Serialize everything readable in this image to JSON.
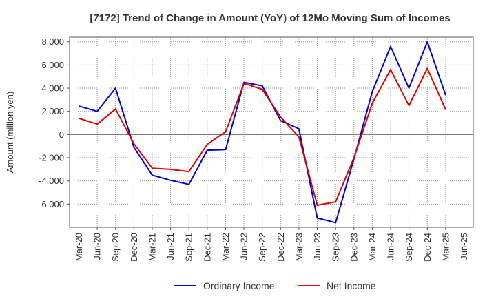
{
  "chart_data": {
    "type": "line",
    "title": "[7172]  Trend of Change in Amount (YoY) of 12Mo Moving Sum of Incomes",
    "ylabel": "Amount (million yen)",
    "xlabel": "",
    "x": [
      "Mar-20",
      "Jun-20",
      "Sep-20",
      "Dec-20",
      "Mar-21",
      "Jun-21",
      "Sep-21",
      "Dec-21",
      "Mar-22",
      "Jun-22",
      "Sep-22",
      "Dec-22",
      "Mar-23",
      "Jun-23",
      "Sep-23",
      "Dec-23",
      "Mar-24",
      "Jun-24",
      "Sep-24",
      "Dec-24",
      "Mar-25",
      "Jun-25"
    ],
    "ylim": [
      -8000,
      8400
    ],
    "yticks": [
      -6000,
      -4000,
      -2000,
      0,
      2000,
      4000,
      6000,
      8000
    ],
    "ytick_labels": [
      "-6,000",
      "-4,000",
      "-2,000",
      "0",
      "2,000",
      "4,000",
      "6,000",
      "8,000"
    ],
    "grid": true,
    "legend_position": "bottom",
    "series": [
      {
        "name": "Ordinary Income",
        "color": "#0000cc",
        "values": [
          2450,
          2000,
          4000,
          -1100,
          -3500,
          -3950,
          -4300,
          -1350,
          -1300,
          4500,
          4200,
          1200,
          500,
          -7200,
          -7600,
          -2100,
          3700,
          7600,
          4000,
          8000,
          3400,
          null
        ]
      },
      {
        "name": "Net Income",
        "color": "#dd0000",
        "values": [
          1400,
          900,
          2200,
          -800,
          -2900,
          -3000,
          -3200,
          -850,
          250,
          4400,
          3900,
          1500,
          -200,
          -6100,
          -5800,
          -2000,
          2700,
          5600,
          2500,
          5700,
          2150,
          null
        ]
      }
    ]
  }
}
